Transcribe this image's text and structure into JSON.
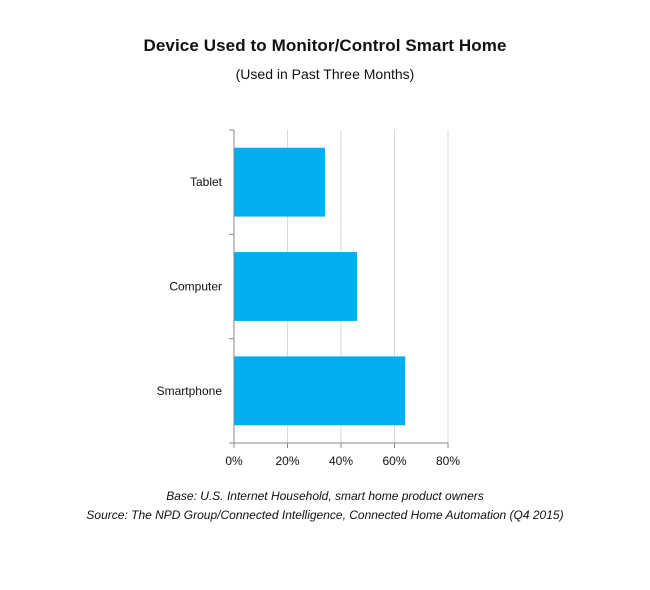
{
  "chart_data": {
    "type": "bar",
    "orientation": "horizontal",
    "title": "Device Used to Monitor/Control Smart Home",
    "subtitle": "(Used in Past Three Months)",
    "categories": [
      "Tablet",
      "Computer",
      "Smartphone"
    ],
    "values": [
      34,
      46,
      64
    ],
    "value_unit": "%",
    "xlim": [
      0,
      80
    ],
    "x_ticks": [
      "0%",
      "20%",
      "40%",
      "60%",
      "80%"
    ],
    "grid": "vertical",
    "bar_color": "#00adef",
    "legend": "none",
    "xlabel": "",
    "ylabel": ""
  },
  "notes": {
    "base": "Base: U.S. Internet Household, smart home product owners",
    "source": "Source: The NPD Group/Connected Intelligence, Connected Home Automation (Q4 2015)"
  }
}
